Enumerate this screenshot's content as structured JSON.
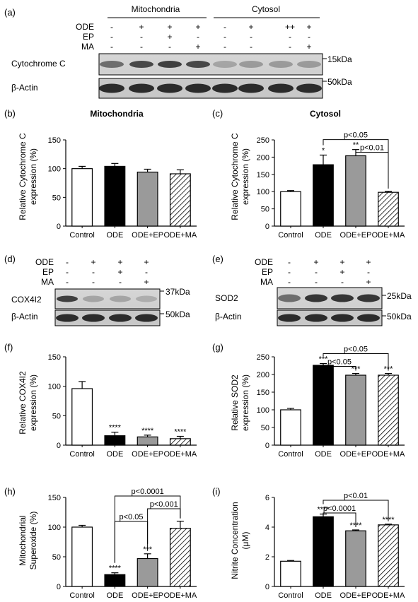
{
  "panels": {
    "a": {
      "label": "(a)",
      "groups": [
        "Mitochondria",
        "Cytosol"
      ],
      "rows": {
        "ODE": "ODE",
        "EP": "EP",
        "MA": "MA"
      },
      "lanes": [
        {
          "ODE": "-",
          "EP": "-",
          "MA": "-"
        },
        {
          "ODE": "+",
          "EP": "-",
          "MA": "-"
        },
        {
          "ODE": "+",
          "EP": "+",
          "MA": "-"
        },
        {
          "ODE": "+",
          "EP": "-",
          "MA": "+"
        },
        {
          "ODE": "-",
          "EP": "-",
          "MA": "-"
        },
        {
          "ODE": "+",
          "EP": "-",
          "MA": "-"
        },
        {
          "ODE": "++",
          "EP": "-",
          "MA": "-"
        },
        {
          "ODE": "+",
          "EP": "-",
          "MA": "+"
        }
      ],
      "blots": [
        {
          "name": "Cytochrome C",
          "size": "15kDa"
        },
        {
          "name": "β-Actin",
          "size": "50kDa"
        }
      ]
    },
    "d": {
      "label": "(d)",
      "rows": {
        "ODE": "ODE",
        "EP": "EP",
        "MA": "MA"
      },
      "lanes": [
        {
          "ODE": "-",
          "EP": "-",
          "MA": "-"
        },
        {
          "ODE": "+",
          "EP": "-",
          "MA": "-"
        },
        {
          "ODE": "+",
          "EP": "+",
          "MA": "-"
        },
        {
          "ODE": "+",
          "EP": "-",
          "MA": "+"
        }
      ],
      "blots": [
        {
          "name": "COX4I2",
          "size": "37kDa"
        },
        {
          "name": "β-Actin",
          "size": "50kDa"
        }
      ]
    },
    "e": {
      "label": "(e)",
      "rows": {
        "ODE": "ODE",
        "EP": "EP",
        "MA": "MA"
      },
      "lanes": [
        {
          "ODE": "-",
          "EP": "-",
          "MA": "-"
        },
        {
          "ODE": "+",
          "EP": "-",
          "MA": "-"
        },
        {
          "ODE": "+",
          "EP": "+",
          "MA": "-"
        },
        {
          "ODE": "+",
          "EP": "-",
          "MA": "+"
        }
      ],
      "blots": [
        {
          "name": "SOD2",
          "size": "25kDa"
        },
        {
          "name": "β-Actin",
          "size": "50kDa"
        }
      ]
    }
  },
  "chart_data": [
    {
      "panel": "(b)",
      "type": "bar",
      "title": "Mitochondria",
      "ylabel": [
        "Relative Cytochrome C",
        "expression (%)"
      ],
      "categories": [
        "Control",
        "ODE",
        "ODE+EP",
        "ODE+MA"
      ],
      "values": [
        100,
        104,
        94,
        91
      ],
      "errors": [
        4,
        5,
        5,
        7
      ],
      "ylim": [
        0,
        150
      ],
      "yticks": [
        0,
        50,
        100,
        150
      ],
      "stars": [
        "",
        "",
        "",
        ""
      ],
      "brackets": []
    },
    {
      "panel": "(c)",
      "type": "bar",
      "title": "Cytosol",
      "ylabel": [
        "Relative Cytochrome C",
        "expression (%)"
      ],
      "categories": [
        "Control",
        "ODE",
        "ODE+EP",
        "ODE+MA"
      ],
      "values": [
        100,
        178,
        204,
        98
      ],
      "errors": [
        3,
        28,
        18,
        3
      ],
      "ylim": [
        0,
        250
      ],
      "yticks": [
        0,
        50,
        100,
        150,
        200,
        250
      ],
      "stars": [
        "",
        "*",
        "**",
        ""
      ],
      "brackets": [
        {
          "from": 1,
          "to": 3,
          "label": "p<0.05"
        },
        {
          "from": 2,
          "to": 3,
          "label": "p<0.01"
        }
      ]
    },
    {
      "panel": "(f)",
      "type": "bar",
      "title": "",
      "ylabel": [
        "Relative COX4I2",
        "expression (%)"
      ],
      "categories": [
        "Control",
        "ODE",
        "ODE+EP",
        "ODE+MA"
      ],
      "values": [
        96,
        16,
        14,
        11
      ],
      "errors": [
        12,
        6,
        3,
        4
      ],
      "ylim": [
        0,
        150
      ],
      "yticks": [
        0,
        50,
        100,
        150
      ],
      "stars": [
        "",
        "****",
        "****",
        "****"
      ],
      "brackets": []
    },
    {
      "panel": "(g)",
      "type": "bar",
      "title": "",
      "ylabel": [
        "Relative SOD2",
        "expression (%)"
      ],
      "categories": [
        "Control",
        "ODE",
        "ODE+EP",
        "ODE+MA"
      ],
      "values": [
        100,
        226,
        198,
        198
      ],
      "errors": [
        4,
        5,
        5,
        5
      ],
      "ylim": [
        0,
        250
      ],
      "yticks": [
        0,
        50,
        100,
        150,
        200,
        250
      ],
      "stars": [
        "",
        "***",
        "***",
        "***"
      ],
      "brackets": [
        {
          "from": 1,
          "to": 3,
          "label": "p<0.05"
        },
        {
          "from": 1,
          "to": 2,
          "label": "p<0.05"
        }
      ]
    },
    {
      "panel": "(h)",
      "type": "bar",
      "title": "",
      "ylabel": [
        "Mitochondrial",
        "Superoxide (%)"
      ],
      "categories": [
        "Control",
        "ODE",
        "ODE+EP",
        "ODE+MA"
      ],
      "values": [
        100,
        20,
        47,
        98
      ],
      "errors": [
        3,
        3,
        8,
        12
      ],
      "ylim": [
        0,
        150
      ],
      "yticks": [
        0,
        50,
        100,
        150
      ],
      "stars": [
        "",
        "****",
        "***",
        ""
      ],
      "brackets": [
        {
          "from": 1,
          "to": 3,
          "label": "p<0.0001"
        },
        {
          "from": 2,
          "to": 3,
          "label": "p<0.001"
        },
        {
          "from": 1,
          "to": 2,
          "label": "p<0.05"
        }
      ]
    },
    {
      "panel": "(i)",
      "type": "bar",
      "title": "",
      "ylabel": [
        "Nitrite Concentration",
        "(μM)"
      ],
      "categories": [
        "Control",
        "ODE",
        "ODE+EP",
        "ODE+MA"
      ],
      "values": [
        1.7,
        4.7,
        3.75,
        4.15
      ],
      "errors": [
        0.05,
        0.18,
        0.06,
        0.05
      ],
      "ylim": [
        0,
        6
      ],
      "yticks": [
        0,
        2,
        4,
        6
      ],
      "stars": [
        "",
        "****",
        "****",
        "****"
      ],
      "brackets": [
        {
          "from": 1,
          "to": 3,
          "label": "p<0.01"
        },
        {
          "from": 1,
          "to": 2,
          "label": "p<0.0001"
        }
      ]
    }
  ],
  "colors": {
    "control": "#ffffff",
    "ode": "#000000",
    "ode_ep": "#9a9a9a",
    "ode_ma": "hatch"
  }
}
